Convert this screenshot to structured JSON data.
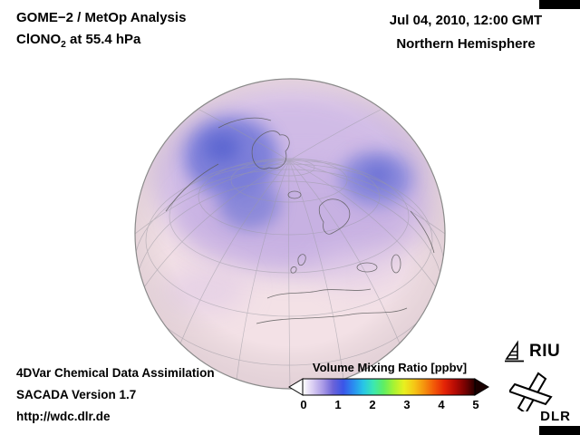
{
  "header": {
    "title": "GOME−2 / MetOp Analysis",
    "species_prefix": "ClONO",
    "species_sub": "2",
    "species_suffix": " at 55.4 hPa",
    "datetime": "Jul 04, 2010, 12:00 GMT",
    "region": "Northern Hemisphere"
  },
  "attribution": {
    "line1": "4DVar Chemical Data Assimilation",
    "line2": "SACADA Version 1.7",
    "line3": "http://wdc.dlr.de"
  },
  "colorbar": {
    "label": "Volume Mixing Ratio [ppbv]",
    "ticks": [
      "0",
      "1",
      "2",
      "3",
      "4",
      "5"
    ],
    "range_min": 0,
    "range_max": 5,
    "colors": [
      "#ffffff",
      "#d9cdf2",
      "#a99ae6",
      "#6b63d8",
      "#3a55e8",
      "#2a8df0",
      "#28c6e6",
      "#3ce8b0",
      "#5fee62",
      "#a8f332",
      "#e8f020",
      "#f5c716",
      "#f5920e",
      "#f25708",
      "#e42306",
      "#b80c04",
      "#7a0202",
      "#2a0000"
    ],
    "arrow_left_color": "#ffffff",
    "arrow_right_color": "#1a0000"
  },
  "map": {
    "base_color": "#f3e1e6",
    "low_value_color": "#e9d5ea",
    "mid_value_color": "#c8b2e6",
    "high_value_color": "#6f76d8"
  },
  "logos": {
    "riu": "RIU",
    "dlr": "DLR"
  }
}
